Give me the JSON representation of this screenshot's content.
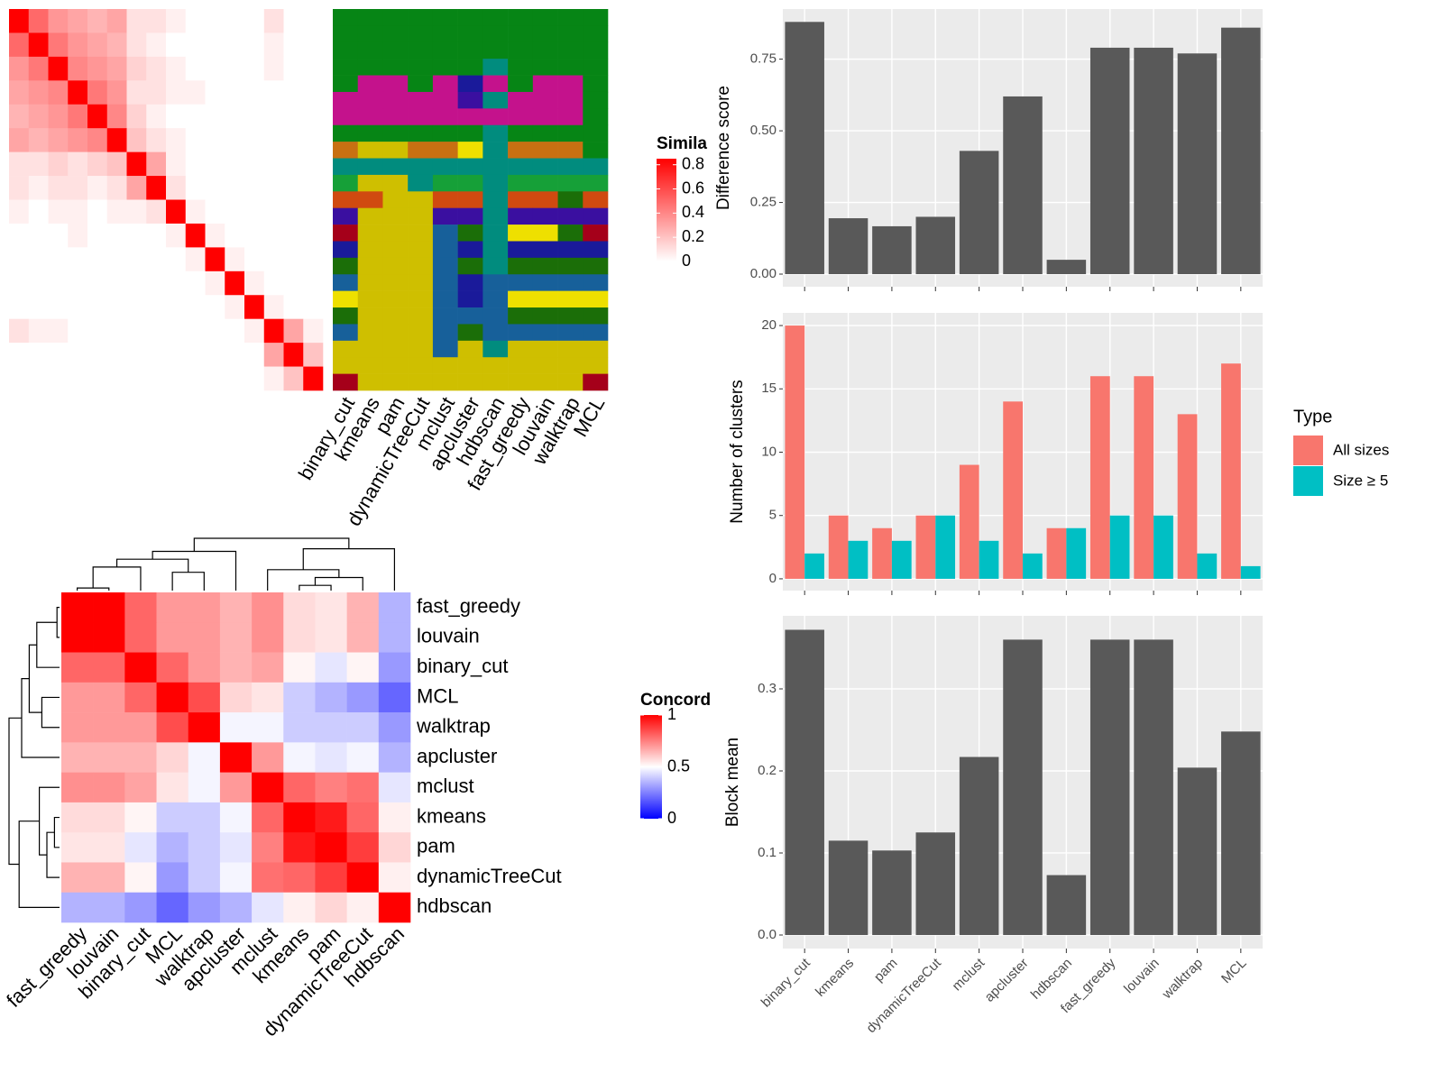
{
  "chart_data": [
    {
      "type": "heatmap",
      "title": "Simila",
      "colors": [
        "#FFFFFF",
        "#FF0000"
      ],
      "clim": [
        0,
        0.85
      ],
      "ticks": [
        0,
        0.2,
        0.4,
        0.6,
        0.8
      ],
      "matrix": [
        [
          0.85,
          0.5,
          0.35,
          0.3,
          0.25,
          0.3,
          0.1,
          0.1,
          0.05,
          0,
          0,
          0,
          0,
          0.1,
          0,
          0
        ],
        [
          0.5,
          0.85,
          0.45,
          0.35,
          0.3,
          0.25,
          0.1,
          0.05,
          0,
          0,
          0,
          0,
          0,
          0.05,
          0,
          0
        ],
        [
          0.35,
          0.45,
          0.85,
          0.4,
          0.35,
          0.3,
          0.15,
          0.1,
          0.05,
          0,
          0,
          0,
          0,
          0.05,
          0,
          0
        ],
        [
          0.3,
          0.35,
          0.4,
          0.85,
          0.45,
          0.35,
          0.1,
          0.1,
          0.05,
          0.05,
          0,
          0,
          0,
          0,
          0,
          0
        ],
        [
          0.25,
          0.3,
          0.35,
          0.45,
          0.85,
          0.4,
          0.15,
          0.05,
          0,
          0,
          0,
          0,
          0,
          0,
          0,
          0
        ],
        [
          0.3,
          0.25,
          0.3,
          0.35,
          0.4,
          0.85,
          0.2,
          0.1,
          0.05,
          0,
          0,
          0,
          0,
          0,
          0,
          0
        ],
        [
          0.1,
          0.1,
          0.15,
          0.1,
          0.15,
          0.2,
          0.85,
          0.3,
          0.05,
          0,
          0,
          0,
          0,
          0,
          0,
          0
        ],
        [
          0.1,
          0.05,
          0.1,
          0.1,
          0.05,
          0.1,
          0.3,
          0.85,
          0.1,
          0,
          0,
          0,
          0,
          0,
          0,
          0
        ],
        [
          0.05,
          0,
          0.05,
          0.05,
          0,
          0.05,
          0.05,
          0.1,
          0.85,
          0.05,
          0,
          0,
          0,
          0,
          0,
          0
        ],
        [
          0,
          0,
          0,
          0.05,
          0,
          0,
          0,
          0,
          0.05,
          0.85,
          0.05,
          0,
          0,
          0,
          0,
          0
        ],
        [
          0,
          0,
          0,
          0,
          0,
          0,
          0,
          0,
          0,
          0.05,
          0.85,
          0.05,
          0,
          0,
          0,
          0
        ],
        [
          0,
          0,
          0,
          0,
          0,
          0,
          0,
          0,
          0,
          0,
          0.05,
          0.85,
          0.05,
          0,
          0,
          0
        ],
        [
          0,
          0,
          0,
          0,
          0,
          0,
          0,
          0,
          0,
          0,
          0,
          0.05,
          0.85,
          0.05,
          0,
          0
        ],
        [
          0.1,
          0.05,
          0.05,
          0,
          0,
          0,
          0,
          0,
          0,
          0,
          0,
          0,
          0.05,
          0.85,
          0.3,
          0.05
        ],
        [
          0,
          0,
          0,
          0,
          0,
          0,
          0,
          0,
          0,
          0,
          0,
          0,
          0,
          0.3,
          0.85,
          0.2
        ],
        [
          0,
          0,
          0,
          0,
          0,
          0,
          0,
          0,
          0,
          0,
          0,
          0,
          0,
          0.05,
          0.2,
          0.85
        ]
      ]
    },
    {
      "type": "categorical_heatmap",
      "columns": [
        "binary_cut",
        "kmeans",
        "pam",
        "dynamicTreeCut",
        "mclust",
        "apcluster",
        "hdbscan",
        "fast_greedy",
        "louvain",
        "walktrap",
        "MCL"
      ],
      "palette": [
        "#068515",
        "#C4128C",
        "#C87012",
        "#018C7E",
        "#CFBF00",
        "#17609A",
        "#3A0FA0",
        "#D04A10",
        "#16A038",
        "#1B6E08",
        "#EEE000",
        "#A5001A",
        "#1A1A9A"
      ],
      "matrix": [
        [
          0,
          0,
          0,
          0,
          0,
          0,
          0,
          0,
          0,
          0,
          0
        ],
        [
          0,
          0,
          0,
          0,
          0,
          0,
          0,
          0,
          0,
          0,
          0
        ],
        [
          0,
          0,
          0,
          0,
          0,
          0,
          0,
          0,
          0,
          0,
          0
        ],
        [
          0,
          0,
          0,
          0,
          0,
          0,
          3,
          0,
          0,
          0,
          0
        ],
        [
          0,
          1,
          1,
          0,
          1,
          12,
          1,
          0,
          1,
          1,
          0
        ],
        [
          1,
          1,
          1,
          1,
          1,
          6,
          3,
          1,
          1,
          1,
          0
        ],
        [
          1,
          1,
          1,
          1,
          1,
          1,
          1,
          1,
          1,
          1,
          0
        ],
        [
          0,
          0,
          0,
          0,
          0,
          0,
          3,
          0,
          0,
          0,
          0
        ],
        [
          2,
          4,
          4,
          2,
          2,
          10,
          3,
          2,
          2,
          2,
          0
        ],
        [
          3,
          3,
          3,
          3,
          3,
          3,
          3,
          3,
          3,
          3,
          3
        ],
        [
          8,
          4,
          4,
          3,
          8,
          8,
          3,
          8,
          8,
          8,
          8
        ],
        [
          7,
          7,
          4,
          4,
          7,
          7,
          3,
          7,
          7,
          9,
          7
        ],
        [
          6,
          4,
          4,
          4,
          6,
          6,
          3,
          6,
          6,
          6,
          6
        ],
        [
          11,
          4,
          4,
          4,
          5,
          9,
          3,
          10,
          10,
          9,
          11
        ],
        [
          12,
          4,
          4,
          4,
          5,
          12,
          3,
          12,
          12,
          12,
          12
        ],
        [
          9,
          4,
          4,
          4,
          5,
          9,
          3,
          9,
          9,
          9,
          9
        ],
        [
          5,
          4,
          4,
          4,
          5,
          12,
          5,
          5,
          5,
          5,
          5
        ],
        [
          10,
          4,
          4,
          4,
          5,
          12,
          5,
          10,
          10,
          10,
          10
        ],
        [
          9,
          4,
          4,
          4,
          5,
          5,
          5,
          9,
          9,
          9,
          9
        ],
        [
          5,
          4,
          4,
          4,
          5,
          9,
          5,
          5,
          5,
          5,
          5
        ],
        [
          4,
          4,
          4,
          4,
          5,
          4,
          3,
          4,
          4,
          4,
          4
        ],
        [
          4,
          4,
          4,
          4,
          4,
          4,
          4,
          4,
          4,
          4,
          4
        ],
        [
          11,
          4,
          4,
          4,
          4,
          4,
          4,
          4,
          4,
          4,
          11
        ]
      ]
    },
    {
      "type": "heatmap",
      "title": "Concord",
      "colors": [
        "#0000FF",
        "#FFFFFF",
        "#FF0000"
      ],
      "clim": [
        0,
        1
      ],
      "ticks": [
        0,
        0.5,
        1
      ],
      "rows": [
        "fast_greedy",
        "louvain",
        "binary_cut",
        "MCL",
        "walktrap",
        "apcluster",
        "mclust",
        "kmeans",
        "pam",
        "dynamicTreeCut",
        "hdbscan"
      ],
      "columns": [
        "fast_greedy",
        "louvain",
        "binary_cut",
        "MCL",
        "walktrap",
        "apcluster",
        "mclust",
        "kmeans",
        "pam",
        "dynamicTreeCut",
        "hdbscan"
      ],
      "matrix": [
        [
          1,
          1,
          0.8,
          0.7,
          0.7,
          0.65,
          0.72,
          0.57,
          0.55,
          0.65,
          0.35
        ],
        [
          1,
          1,
          0.8,
          0.7,
          0.7,
          0.65,
          0.72,
          0.57,
          0.55,
          0.65,
          0.35
        ],
        [
          0.8,
          0.8,
          1,
          0.8,
          0.7,
          0.65,
          0.68,
          0.52,
          0.45,
          0.52,
          0.3
        ],
        [
          0.7,
          0.7,
          0.8,
          1,
          0.85,
          0.58,
          0.55,
          0.4,
          0.35,
          0.3,
          0.2
        ],
        [
          0.7,
          0.7,
          0.7,
          0.85,
          1,
          0.48,
          0.48,
          0.4,
          0.4,
          0.4,
          0.3
        ],
        [
          0.65,
          0.65,
          0.65,
          0.58,
          0.48,
          1,
          0.7,
          0.48,
          0.45,
          0.48,
          0.35
        ],
        [
          0.72,
          0.72,
          0.68,
          0.55,
          0.48,
          0.7,
          1,
          0.8,
          0.75,
          0.78,
          0.45
        ],
        [
          0.57,
          0.57,
          0.52,
          0.4,
          0.4,
          0.48,
          0.8,
          1,
          0.95,
          0.8,
          0.53
        ],
        [
          0.55,
          0.55,
          0.45,
          0.35,
          0.4,
          0.45,
          0.75,
          0.95,
          1,
          0.88,
          0.58
        ],
        [
          0.65,
          0.65,
          0.52,
          0.3,
          0.4,
          0.48,
          0.78,
          0.8,
          0.88,
          1,
          0.53
        ],
        [
          0.35,
          0.35,
          0.3,
          0.2,
          0.3,
          0.35,
          0.45,
          0.53,
          0.58,
          0.53,
          1
        ]
      ],
      "dendrogram": [
        [
          -1,
          -2,
          0.05
        ],
        [
          -4,
          -5,
          0.35
        ],
        [
          -3,
          1,
          0.45
        ],
        [
          3,
          2,
          0.6
        ],
        [
          4,
          -6,
          0.75
        ],
        [
          -8,
          -9,
          0.1
        ],
        [
          6,
          -10,
          0.25
        ],
        [
          -7,
          7,
          0.4
        ],
        [
          8,
          -11,
          0.8
        ],
        [
          5,
          9,
          1.0
        ]
      ]
    },
    {
      "type": "bar",
      "ylabel": "Difference score",
      "color": "#595959",
      "grid": true,
      "values": [
        0.88,
        0.195,
        0.167,
        0.2,
        0.43,
        0.62,
        0.05,
        0.79,
        0.79,
        0.77,
        0.86
      ],
      "ylim": [
        -0.044,
        0.925
      ],
      "yticks": [
        {
          "value": 0,
          "label": "0.00"
        },
        0.25,
        {
          "value": 0.5,
          "label": "0.50"
        },
        0.75
      ]
    },
    {
      "type": "grouped_bar",
      "ylabel": "Number of clusters",
      "grid": true,
      "legend_title": "Type",
      "legend": "right",
      "series": [
        {
          "name": "All sizes",
          "color": "#F8766D",
          "values": [
            20,
            5,
            4,
            5,
            9,
            14,
            4,
            16,
            16,
            13,
            17
          ]
        },
        {
          "name": "Size ≥ 5",
          "color": "#00BFC4",
          "values": [
            2,
            3,
            3,
            5,
            3,
            2,
            4,
            5,
            5,
            2,
            1
          ]
        }
      ],
      "ylim": [
        -0.93,
        21.0
      ],
      "yticks": [
        0,
        5,
        10,
        15,
        20
      ]
    },
    {
      "type": "bar",
      "ylabel": "Block mean",
      "color": "#595959",
      "grid": true,
      "categories": [
        "binary_cut",
        "kmeans",
        "pam",
        "dynamicTreeCut",
        "mclust",
        "apcluster",
        "hdbscan",
        "fast_greedy",
        "louvain",
        "walktrap",
        "MCL"
      ],
      "values": [
        0.372,
        0.115,
        0.103,
        0.125,
        0.217,
        0.36,
        0.073,
        0.36,
        0.36,
        0.204,
        0.248
      ],
      "ylim": [
        -0.0165,
        0.389
      ],
      "yticks": [
        {
          "value": 0,
          "label": "0.0"
        },
        0.1,
        0.2,
        0.3
      ]
    }
  ]
}
